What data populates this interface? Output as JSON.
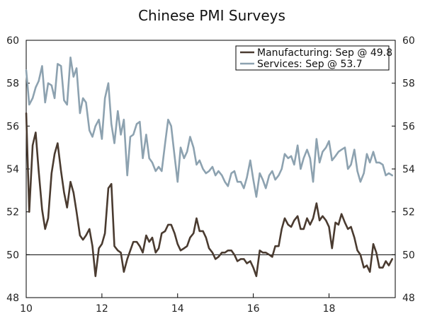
{
  "chart_data": {
    "type": "line",
    "title": "Chinese PMI Surveys",
    "xlabel": "",
    "ylabel": "",
    "xlim": [
      2010,
      2019.75
    ],
    "ylim": [
      48,
      60
    ],
    "y_ticks": [
      48,
      50,
      52,
      54,
      56,
      58,
      60
    ],
    "x_ticks": [
      {
        "value": 2010,
        "label": "10"
      },
      {
        "value": 2012,
        "label": "12"
      },
      {
        "value": 2014,
        "label": "14"
      },
      {
        "value": 2016,
        "label": "16"
      },
      {
        "value": 2018,
        "label": "18"
      }
    ],
    "reference_line": 50,
    "grid": false,
    "legend": "top-right",
    "series": [
      {
        "name": "Manufacturing: Sep @ 49.8",
        "color": "#4a3b30",
        "points": [
          [
            2010.0,
            56.6
          ],
          [
            2010.08,
            52.0
          ],
          [
            2010.17,
            55.1
          ],
          [
            2010.25,
            55.7
          ],
          [
            2010.33,
            53.9
          ],
          [
            2010.42,
            52.1
          ],
          [
            2010.5,
            51.2
          ],
          [
            2010.58,
            51.7
          ],
          [
            2010.67,
            53.8
          ],
          [
            2010.75,
            54.7
          ],
          [
            2010.83,
            55.2
          ],
          [
            2010.92,
            53.9
          ],
          [
            2011.0,
            52.9
          ],
          [
            2011.08,
            52.2
          ],
          [
            2011.17,
            53.4
          ],
          [
            2011.25,
            52.9
          ],
          [
            2011.33,
            52.0
          ],
          [
            2011.42,
            50.9
          ],
          [
            2011.5,
            50.7
          ],
          [
            2011.58,
            50.9
          ],
          [
            2011.67,
            51.2
          ],
          [
            2011.75,
            50.4
          ],
          [
            2011.83,
            49.0
          ],
          [
            2011.92,
            50.3
          ],
          [
            2012.0,
            50.5
          ],
          [
            2012.08,
            51.0
          ],
          [
            2012.17,
            53.1
          ],
          [
            2012.25,
            53.3
          ],
          [
            2012.33,
            50.4
          ],
          [
            2012.42,
            50.2
          ],
          [
            2012.5,
            50.1
          ],
          [
            2012.58,
            49.2
          ],
          [
            2012.67,
            49.8
          ],
          [
            2012.75,
            50.2
          ],
          [
            2012.83,
            50.6
          ],
          [
            2012.92,
            50.6
          ],
          [
            2013.0,
            50.4
          ],
          [
            2013.08,
            50.1
          ],
          [
            2013.17,
            50.9
          ],
          [
            2013.25,
            50.6
          ],
          [
            2013.33,
            50.8
          ],
          [
            2013.42,
            50.1
          ],
          [
            2013.5,
            50.3
          ],
          [
            2013.58,
            51.0
          ],
          [
            2013.67,
            51.1
          ],
          [
            2013.75,
            51.4
          ],
          [
            2013.83,
            51.4
          ],
          [
            2013.92,
            51.0
          ],
          [
            2014.0,
            50.5
          ],
          [
            2014.08,
            50.2
          ],
          [
            2014.17,
            50.3
          ],
          [
            2014.25,
            50.4
          ],
          [
            2014.33,
            50.8
          ],
          [
            2014.42,
            51.0
          ],
          [
            2014.5,
            51.7
          ],
          [
            2014.58,
            51.1
          ],
          [
            2014.67,
            51.1
          ],
          [
            2014.75,
            50.8
          ],
          [
            2014.83,
            50.3
          ],
          [
            2014.92,
            50.1
          ],
          [
            2015.0,
            49.8
          ],
          [
            2015.08,
            49.9
          ],
          [
            2015.17,
            50.1
          ],
          [
            2015.25,
            50.1
          ],
          [
            2015.33,
            50.2
          ],
          [
            2015.42,
            50.2
          ],
          [
            2015.5,
            50.0
          ],
          [
            2015.58,
            49.7
          ],
          [
            2015.67,
            49.8
          ],
          [
            2015.75,
            49.8
          ],
          [
            2015.83,
            49.6
          ],
          [
            2015.92,
            49.7
          ],
          [
            2016.0,
            49.4
          ],
          [
            2016.08,
            49.0
          ],
          [
            2016.17,
            50.2
          ],
          [
            2016.25,
            50.1
          ],
          [
            2016.33,
            50.1
          ],
          [
            2016.42,
            50.0
          ],
          [
            2016.5,
            49.9
          ],
          [
            2016.58,
            50.4
          ],
          [
            2016.67,
            50.4
          ],
          [
            2016.75,
            51.2
          ],
          [
            2016.83,
            51.7
          ],
          [
            2016.92,
            51.4
          ],
          [
            2017.0,
            51.3
          ],
          [
            2017.08,
            51.6
          ],
          [
            2017.17,
            51.8
          ],
          [
            2017.25,
            51.2
          ],
          [
            2017.33,
            51.2
          ],
          [
            2017.42,
            51.7
          ],
          [
            2017.5,
            51.4
          ],
          [
            2017.58,
            51.7
          ],
          [
            2017.67,
            52.4
          ],
          [
            2017.75,
            51.6
          ],
          [
            2017.83,
            51.8
          ],
          [
            2017.92,
            51.6
          ],
          [
            2018.0,
            51.3
          ],
          [
            2018.08,
            50.3
          ],
          [
            2018.17,
            51.5
          ],
          [
            2018.25,
            51.4
          ],
          [
            2018.33,
            51.9
          ],
          [
            2018.42,
            51.5
          ],
          [
            2018.5,
            51.2
          ],
          [
            2018.58,
            51.3
          ],
          [
            2018.67,
            50.8
          ],
          [
            2018.75,
            50.2
          ],
          [
            2018.83,
            50.0
          ],
          [
            2018.92,
            49.4
          ],
          [
            2019.0,
            49.5
          ],
          [
            2019.08,
            49.2
          ],
          [
            2019.17,
            50.5
          ],
          [
            2019.25,
            50.1
          ],
          [
            2019.33,
            49.4
          ],
          [
            2019.42,
            49.4
          ],
          [
            2019.5,
            49.7
          ],
          [
            2019.58,
            49.5
          ],
          [
            2019.67,
            49.8
          ]
        ]
      },
      {
        "name": "Services: Sep @ 53.7",
        "color": "#8da2b0",
        "points": [
          [
            2010.0,
            58.6
          ],
          [
            2010.08,
            57.0
          ],
          [
            2010.17,
            57.3
          ],
          [
            2010.25,
            57.8
          ],
          [
            2010.33,
            58.1
          ],
          [
            2010.42,
            58.8
          ],
          [
            2010.5,
            57.1
          ],
          [
            2010.58,
            58.0
          ],
          [
            2010.67,
            57.9
          ],
          [
            2010.75,
            57.3
          ],
          [
            2010.83,
            58.9
          ],
          [
            2010.92,
            58.8
          ],
          [
            2011.0,
            57.2
          ],
          [
            2011.08,
            57.0
          ],
          [
            2011.17,
            59.2
          ],
          [
            2011.25,
            58.3
          ],
          [
            2011.33,
            58.7
          ],
          [
            2011.42,
            56.6
          ],
          [
            2011.5,
            57.3
          ],
          [
            2011.58,
            57.1
          ],
          [
            2011.67,
            55.8
          ],
          [
            2011.75,
            55.5
          ],
          [
            2011.83,
            56.0
          ],
          [
            2011.92,
            56.3
          ],
          [
            2012.0,
            55.4
          ],
          [
            2012.08,
            57.3
          ],
          [
            2012.17,
            58.0
          ],
          [
            2012.25,
            56.1
          ],
          [
            2012.33,
            55.2
          ],
          [
            2012.42,
            56.7
          ],
          [
            2012.5,
            55.6
          ],
          [
            2012.58,
            56.3
          ],
          [
            2012.67,
            53.7
          ],
          [
            2012.75,
            55.5
          ],
          [
            2012.83,
            55.6
          ],
          [
            2012.92,
            56.1
          ],
          [
            2013.0,
            56.2
          ],
          [
            2013.08,
            54.5
          ],
          [
            2013.17,
            55.6
          ],
          [
            2013.25,
            54.5
          ],
          [
            2013.33,
            54.3
          ],
          [
            2013.42,
            53.9
          ],
          [
            2013.5,
            54.1
          ],
          [
            2013.58,
            53.9
          ],
          [
            2013.67,
            55.2
          ],
          [
            2013.75,
            56.3
          ],
          [
            2013.83,
            56.0
          ],
          [
            2013.92,
            54.6
          ],
          [
            2014.0,
            53.4
          ],
          [
            2014.08,
            55.0
          ],
          [
            2014.17,
            54.5
          ],
          [
            2014.25,
            54.8
          ],
          [
            2014.33,
            55.5
          ],
          [
            2014.42,
            55.0
          ],
          [
            2014.5,
            54.2
          ],
          [
            2014.58,
            54.4
          ],
          [
            2014.67,
            54.0
          ],
          [
            2014.75,
            53.8
          ],
          [
            2014.83,
            53.9
          ],
          [
            2014.92,
            54.1
          ],
          [
            2015.0,
            53.7
          ],
          [
            2015.08,
            53.9
          ],
          [
            2015.17,
            53.7
          ],
          [
            2015.25,
            53.4
          ],
          [
            2015.33,
            53.2
          ],
          [
            2015.42,
            53.8
          ],
          [
            2015.5,
            53.9
          ],
          [
            2015.58,
            53.4
          ],
          [
            2015.67,
            53.4
          ],
          [
            2015.75,
            53.1
          ],
          [
            2015.83,
            53.6
          ],
          [
            2015.92,
            54.4
          ],
          [
            2016.0,
            53.5
          ],
          [
            2016.08,
            52.7
          ],
          [
            2016.17,
            53.8
          ],
          [
            2016.25,
            53.5
          ],
          [
            2016.33,
            53.1
          ],
          [
            2016.42,
            53.7
          ],
          [
            2016.5,
            53.9
          ],
          [
            2016.58,
            53.5
          ],
          [
            2016.67,
            53.7
          ],
          [
            2016.75,
            54.0
          ],
          [
            2016.83,
            54.7
          ],
          [
            2016.92,
            54.5
          ],
          [
            2017.0,
            54.6
          ],
          [
            2017.08,
            54.2
          ],
          [
            2017.17,
            55.1
          ],
          [
            2017.25,
            54.0
          ],
          [
            2017.33,
            54.5
          ],
          [
            2017.42,
            54.9
          ],
          [
            2017.5,
            54.5
          ],
          [
            2017.58,
            53.4
          ],
          [
            2017.67,
            55.4
          ],
          [
            2017.75,
            54.3
          ],
          [
            2017.83,
            54.8
          ],
          [
            2017.92,
            55.0
          ],
          [
            2018.0,
            55.3
          ],
          [
            2018.08,
            54.4
          ],
          [
            2018.17,
            54.6
          ],
          [
            2018.25,
            54.8
          ],
          [
            2018.33,
            54.9
          ],
          [
            2018.42,
            55.0
          ],
          [
            2018.5,
            54.0
          ],
          [
            2018.58,
            54.2
          ],
          [
            2018.67,
            54.9
          ],
          [
            2018.75,
            53.9
          ],
          [
            2018.83,
            53.4
          ],
          [
            2018.92,
            53.8
          ],
          [
            2019.0,
            54.7
          ],
          [
            2019.08,
            54.3
          ],
          [
            2019.17,
            54.8
          ],
          [
            2019.25,
            54.3
          ],
          [
            2019.33,
            54.3
          ],
          [
            2019.42,
            54.2
          ],
          [
            2019.5,
            53.7
          ],
          [
            2019.58,
            53.8
          ],
          [
            2019.67,
            53.7
          ]
        ]
      }
    ]
  }
}
